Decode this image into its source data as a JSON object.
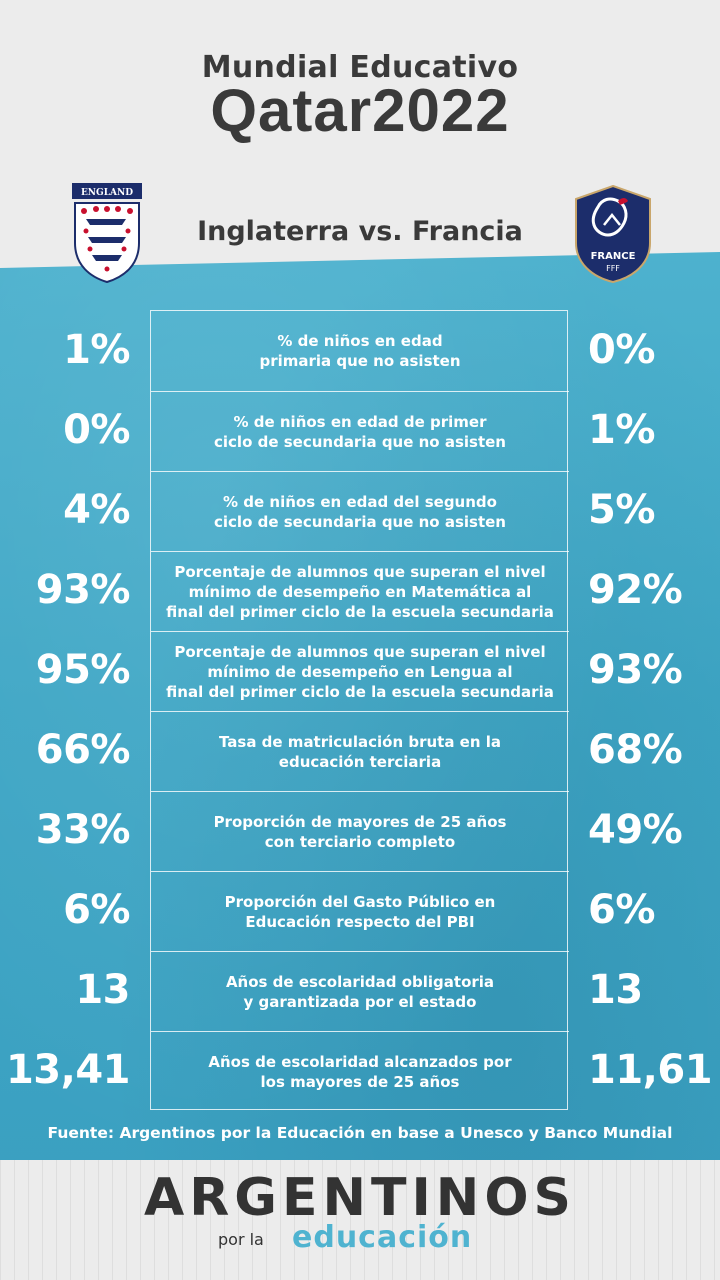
{
  "header": {
    "event_title": "Mundial Educativo",
    "event_logo": "Qatar2022",
    "match_title": "Inglaterra vs. Francia"
  },
  "teams": {
    "left": {
      "crest_text": "ENGLAND",
      "icon": "england-crest-icon"
    },
    "right": {
      "crest_text": "FRANCE",
      "crest_sub": "FFF",
      "icon": "france-crest-icon"
    }
  },
  "rows": [
    {
      "label": "% de niños en edad\nprimaria que no asisten",
      "left": "1%",
      "right": "0%"
    },
    {
      "label": "% de niños en edad de primer\nciclo de secundaria que no asisten",
      "left": "0%",
      "right": "1%"
    },
    {
      "label": "% de niños en edad del segundo\nciclo de secundaria que no asisten",
      "left": "4%",
      "right": "5%"
    },
    {
      "label": "Porcentaje de alumnos que superan el nivel\nmínimo de desempeño en Matemática al\nfinal del primer ciclo de la escuela secundaria",
      "left": "93%",
      "right": "92%"
    },
    {
      "label": "Porcentaje de alumnos que superan el nivel\nmínimo de desempeño en Lengua al\nfinal del primer ciclo de la escuela secundaria",
      "left": "95%",
      "right": "93%"
    },
    {
      "label": "Tasa de matriculación bruta en la\neducación terciaria",
      "left": "66%",
      "right": "68%"
    },
    {
      "label": "Proporción de mayores de 25 años\ncon terciario completo",
      "left": "33%",
      "right": "49%"
    },
    {
      "label": "Proporción del Gasto Público en\nEducación respecto del PBI",
      "left": "6%",
      "right": "6%"
    },
    {
      "label": "Años de escolaridad obligatoria\ny garantizada por el estado",
      "left": "13",
      "right": "13"
    },
    {
      "label": "Años de escolaridad alcanzados por\nlos mayores de 25 años",
      "left": "13,41",
      "right": "11,61"
    }
  ],
  "footer": {
    "source": "Fuente: Argentinos por la Educación en base a Unesco y Banco Mundial",
    "org_name": "ARGENTINOS",
    "org_por": "por la",
    "org_edu": "educación"
  },
  "colors": {
    "accent": "#4fb3d0",
    "dark": "#3a3a3a",
    "light_bg": "#ececec"
  }
}
